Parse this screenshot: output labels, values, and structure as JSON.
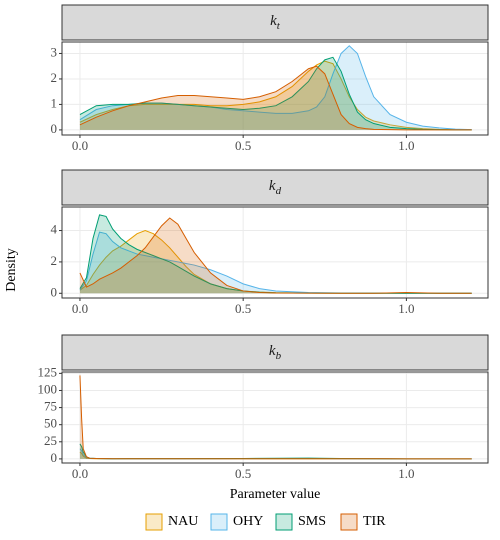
{
  "chart_data": [
    {
      "type": "area",
      "title": "k",
      "title_sub": "t",
      "x": [
        0,
        0.05,
        0.1,
        0.15,
        0.2,
        0.25,
        0.3,
        0.35,
        0.4,
        0.45,
        0.5,
        0.55,
        0.6,
        0.65,
        0.7,
        0.725,
        0.75,
        0.775,
        0.8,
        0.825,
        0.85,
        0.875,
        0.9,
        0.95,
        1.0,
        1.05,
        1.1,
        1.15,
        1.2
      ],
      "series": [
        {
          "name": "NAU",
          "color": "#E69F00",
          "values": [
            0.3,
            0.6,
            0.8,
            0.95,
            1.0,
            1.0,
            1.0,
            1.0,
            0.95,
            0.95,
            1.0,
            1.1,
            1.3,
            1.7,
            2.3,
            2.55,
            2.7,
            2.6,
            2.0,
            1.3,
            0.8,
            0.5,
            0.35,
            0.2,
            0.1,
            0.05,
            0.02,
            0.01,
            0
          ]
        },
        {
          "name": "OHY",
          "color": "#56B4E9",
          "values": [
            0.4,
            0.8,
            0.95,
            1.0,
            1.05,
            1.05,
            1.0,
            0.95,
            0.9,
            0.8,
            0.75,
            0.7,
            0.65,
            0.65,
            0.75,
            0.9,
            1.3,
            2.2,
            3.0,
            3.3,
            3.0,
            2.1,
            1.3,
            0.6,
            0.3,
            0.15,
            0.08,
            0.03,
            0.01
          ]
        },
        {
          "name": "SMS",
          "color": "#009E73",
          "values": [
            0.6,
            0.95,
            1.0,
            1.0,
            1.05,
            1.05,
            1.0,
            0.95,
            0.9,
            0.85,
            0.8,
            0.85,
            0.95,
            1.3,
            1.9,
            2.4,
            2.75,
            2.85,
            2.3,
            1.4,
            0.7,
            0.4,
            0.25,
            0.1,
            0.05,
            0.02,
            0.01,
            0,
            0
          ]
        },
        {
          "name": "TIR",
          "color": "#D55E00",
          "values": [
            0.2,
            0.5,
            0.75,
            0.95,
            1.1,
            1.25,
            1.35,
            1.35,
            1.3,
            1.25,
            1.2,
            1.3,
            1.5,
            1.9,
            2.4,
            2.5,
            2.2,
            1.4,
            0.6,
            0.25,
            0.1,
            0.05,
            0.02,
            0.01,
            0,
            0,
            0,
            0,
            0
          ]
        }
      ],
      "xlim": [
        -0.055,
        1.25
      ],
      "xticks": [
        {
          "value": 0,
          "label": "0.0"
        },
        0.5,
        {
          "value": 1,
          "label": "1.0"
        }
      ],
      "ylim": [
        -0.2,
        3.45
      ],
      "yticks": [
        0,
        1,
        2,
        3
      ],
      "grid": true
    },
    {
      "type": "area",
      "title": "k",
      "title_sub": "d",
      "ylabel": "Density",
      "x": [
        0,
        0.02,
        0.04,
        0.06,
        0.08,
        0.1,
        0.125,
        0.15,
        0.175,
        0.2,
        0.225,
        0.25,
        0.275,
        0.3,
        0.325,
        0.35,
        0.4,
        0.45,
        0.5,
        0.55,
        0.6,
        0.7,
        0.8,
        0.9,
        1.0,
        1.1,
        1.2
      ],
      "series": [
        {
          "name": "NAU",
          "color": "#E69F00",
          "values": [
            0.2,
            0.5,
            1.2,
            1.8,
            2.3,
            2.7,
            3.0,
            3.4,
            3.8,
            4.0,
            3.8,
            3.4,
            2.9,
            2.3,
            1.7,
            1.2,
            0.6,
            0.3,
            0.15,
            0.08,
            0.04,
            0.02,
            0.01,
            0.01,
            0,
            0,
            0
          ]
        },
        {
          "name": "OHY",
          "color": "#56B4E9",
          "values": [
            0.2,
            0.8,
            2.5,
            3.9,
            3.8,
            3.3,
            2.9,
            2.7,
            2.5,
            2.4,
            2.3,
            2.2,
            2.1,
            2.0,
            1.9,
            1.8,
            1.5,
            1.1,
            0.6,
            0.3,
            0.15,
            0.05,
            0.02,
            0.01,
            0,
            0,
            0
          ]
        },
        {
          "name": "SMS",
          "color": "#009E73",
          "values": [
            0.3,
            1.0,
            3.5,
            5.0,
            4.9,
            4.1,
            3.5,
            3.1,
            2.8,
            2.6,
            2.4,
            2.2,
            2.0,
            1.7,
            1.4,
            1.1,
            0.6,
            0.3,
            0.15,
            0.07,
            0.03,
            0.01,
            0,
            0,
            0,
            0,
            0
          ]
        },
        {
          "name": "TIR",
          "color": "#D55E00",
          "values": [
            1.3,
            0.4,
            0.6,
            0.9,
            1.1,
            1.3,
            1.6,
            2.0,
            2.4,
            2.9,
            3.6,
            4.3,
            4.8,
            4.4,
            3.5,
            2.6,
            1.3,
            0.5,
            0.15,
            0.05,
            0.02,
            0.01,
            0,
            0,
            0.05,
            0,
            0
          ]
        }
      ],
      "xlim": [
        -0.055,
        1.25
      ],
      "xticks": [
        {
          "value": 0,
          "label": "0.0"
        },
        0.5,
        {
          "value": 1,
          "label": "1.0"
        }
      ],
      "ylim": [
        -0.3,
        5.5
      ],
      "yticks": [
        0,
        2,
        4
      ],
      "grid": true
    },
    {
      "type": "area",
      "title": "k",
      "title_sub": "b",
      "xlabel": "Parameter value",
      "x": [
        0,
        0.005,
        0.01,
        0.02,
        0.03,
        0.05,
        0.1,
        0.3,
        0.5,
        0.7,
        0.8,
        1.0,
        1.2
      ],
      "series": [
        {
          "name": "NAU",
          "color": "#E69F00",
          "values": [
            10,
            8,
            4,
            1,
            0.5,
            0.3,
            0.2,
            0.2,
            0.2,
            0.3,
            0.2,
            0.1,
            0
          ]
        },
        {
          "name": "OHY",
          "color": "#56B4E9",
          "values": [
            15,
            12,
            6,
            2,
            1,
            0.5,
            0.3,
            0.3,
            0.4,
            0.8,
            0.3,
            0.1,
            0
          ]
        },
        {
          "name": "SMS",
          "color": "#009E73",
          "values": [
            22,
            18,
            10,
            3,
            1,
            0.5,
            0.3,
            0.4,
            0.6,
            1.2,
            0.5,
            0.1,
            0
          ]
        },
        {
          "name": "TIR",
          "color": "#D55E00",
          "values": [
            122,
            60,
            15,
            3,
            1,
            0.5,
            0.3,
            0.2,
            0.2,
            0.2,
            0.2,
            0.1,
            0
          ]
        }
      ],
      "xlim": [
        -0.055,
        1.25
      ],
      "xticks": [
        {
          "value": 0,
          "label": "0.0"
        },
        0.5,
        {
          "value": 1,
          "label": "1.0"
        }
      ],
      "ylim": [
        -6,
        127
      ],
      "yticks": [
        0,
        25,
        50,
        75,
        100,
        125
      ],
      "grid": true,
      "legend": "bottom"
    }
  ]
}
